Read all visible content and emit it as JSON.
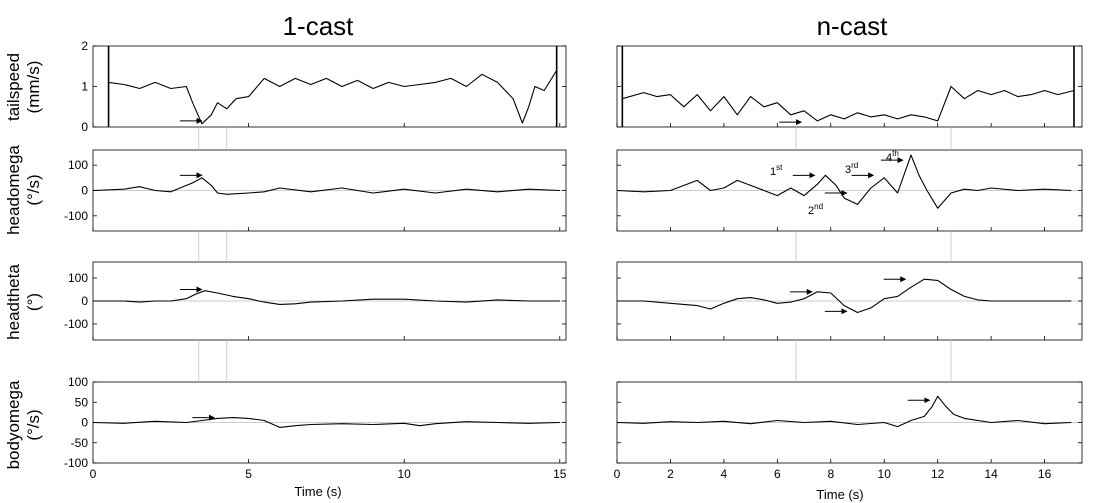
{
  "figure": {
    "left_title": "1-cast",
    "right_title": "n-cast",
    "row_labels": [
      {
        "name": "tailspeed",
        "unit": "(mm/s)"
      },
      {
        "name": "headomega",
        "unit": "(°/s)"
      },
      {
        "name": "headtheta",
        "unit": "(°)"
      },
      {
        "name": "bodyomega",
        "unit": "(°/s)"
      }
    ],
    "xlabel": "Time (s)",
    "left_xticks": [
      "0",
      "5",
      "10",
      "15"
    ],
    "right_xticks": [
      "0",
      "2",
      "4",
      "6",
      "8",
      "10",
      "12",
      "14",
      "16"
    ],
    "yticks": {
      "tailspeed": [
        "2",
        "1",
        "0"
      ],
      "headomega": [
        "100",
        "0",
        "-100"
      ],
      "headtheta": [
        "100",
        "0",
        "-100"
      ],
      "bodyomega": [
        "100",
        "50",
        "0",
        "-50",
        "-100"
      ]
    },
    "cast_labels": [
      {
        "base": "1",
        "sup": "st"
      },
      {
        "base": "2",
        "sup": "nd"
      },
      {
        "base": "3",
        "sup": "rd"
      },
      {
        "base": "4",
        "sup": "th"
      }
    ]
  },
  "chart_data": [
    {
      "type": "line",
      "panel": "1-cast",
      "ylabel": "tailspeed (mm/s)",
      "xlim": [
        0,
        15.2
      ],
      "ylim": [
        0,
        2
      ],
      "markers": [
        0.5,
        14.9
      ],
      "x": [
        0.5,
        1,
        1.5,
        2,
        2.5,
        3,
        3.2,
        3.5,
        3.8,
        4,
        4.3,
        4.6,
        5,
        5.5,
        6,
        6.5,
        7,
        7.5,
        8,
        8.5,
        9,
        9.5,
        10,
        10.5,
        11,
        11.5,
        12,
        12.5,
        13,
        13.5,
        13.8,
        14,
        14.2,
        14.5,
        14.9
      ],
      "y": [
        1.1,
        1.05,
        0.95,
        1.1,
        0.95,
        1.0,
        0.6,
        0.08,
        0.3,
        0.6,
        0.45,
        0.7,
        0.75,
        1.2,
        1.0,
        1.2,
        1.05,
        1.2,
        1.0,
        1.15,
        0.95,
        1.1,
        1.0,
        1.05,
        1.1,
        1.2,
        1.0,
        1.3,
        1.1,
        0.7,
        0.1,
        0.5,
        1.0,
        0.9,
        1.4
      ]
    },
    {
      "type": "line",
      "panel": "1-cast",
      "ylabel": "headomega (°/s)",
      "xlim": [
        0,
        15.2
      ],
      "ylim": [
        -160,
        160
      ],
      "x": [
        0,
        1,
        1.5,
        2,
        2.5,
        3,
        3.2,
        3.5,
        3.8,
        4,
        4.3,
        5,
        5.5,
        6,
        7,
        8,
        9,
        10,
        11,
        12,
        13,
        14,
        15
      ],
      "y": [
        0,
        5,
        15,
        0,
        -5,
        20,
        30,
        50,
        20,
        -10,
        -15,
        -10,
        -5,
        10,
        -5,
        10,
        -10,
        5,
        -10,
        5,
        -5,
        5,
        0
      ]
    },
    {
      "type": "line",
      "panel": "1-cast",
      "ylabel": "headtheta (°)",
      "xlim": [
        0,
        15.2
      ],
      "ylim": [
        -170,
        170
      ],
      "x": [
        0,
        1,
        1.5,
        2,
        2.5,
        3,
        3.3,
        3.6,
        4,
        4.5,
        5,
        5.5,
        6,
        6.5,
        7,
        8,
        9,
        10,
        11,
        12,
        13,
        14,
        15
      ],
      "y": [
        0,
        0,
        -5,
        0,
        0,
        10,
        30,
        45,
        35,
        20,
        10,
        -5,
        -15,
        -12,
        -5,
        0,
        8,
        8,
        0,
        -5,
        5,
        0,
        0
      ]
    },
    {
      "type": "line",
      "panel": "1-cast",
      "ylabel": "bodyomega (°/s)",
      "xlim": [
        0,
        15.2
      ],
      "ylim": [
        -100,
        100
      ],
      "x": [
        0,
        1,
        2,
        3,
        3.5,
        4,
        4.5,
        5,
        5.5,
        6,
        6.5,
        7,
        8,
        9,
        10,
        10.5,
        11,
        12,
        13,
        14,
        15
      ],
      "y": [
        0,
        -2,
        3,
        0,
        5,
        10,
        12,
        10,
        5,
        -12,
        -8,
        -5,
        -3,
        -5,
        -2,
        -8,
        -3,
        2,
        0,
        -2,
        0
      ]
    },
    {
      "type": "line",
      "panel": "n-cast",
      "ylabel": "tailspeed (mm/s)",
      "xlim": [
        0,
        17.4
      ],
      "ylim": [
        0,
        2
      ],
      "markers": [
        0.2,
        17.1
      ],
      "x": [
        0.2,
        1,
        1.5,
        2,
        2.5,
        3,
        3.5,
        4,
        4.5,
        5,
        5.5,
        6,
        6.5,
        7,
        7.5,
        8,
        8.5,
        9,
        9.5,
        10,
        10.5,
        11,
        11.5,
        12,
        12.5,
        13,
        13.5,
        14,
        14.5,
        15,
        15.5,
        16,
        16.5,
        17.1
      ],
      "y": [
        0.7,
        0.85,
        0.75,
        0.8,
        0.5,
        0.8,
        0.4,
        0.75,
        0.3,
        0.75,
        0.5,
        0.6,
        0.3,
        0.4,
        0.15,
        0.3,
        0.2,
        0.35,
        0.25,
        0.3,
        0.2,
        0.3,
        0.25,
        0.15,
        1.0,
        0.7,
        0.9,
        0.8,
        0.9,
        0.75,
        0.8,
        0.9,
        0.8,
        0.9
      ]
    },
    {
      "type": "line",
      "panel": "n-cast",
      "ylabel": "headomega (°/s)",
      "xlim": [
        0,
        17.4
      ],
      "ylim": [
        -160,
        160
      ],
      "x": [
        0,
        1,
        2,
        3,
        3.5,
        4,
        4.5,
        5,
        5.5,
        6,
        6.5,
        7,
        7.5,
        7.8,
        8.2,
        8.5,
        9,
        9.5,
        10,
        10.5,
        11,
        11.3,
        11.6,
        12,
        12.5,
        13,
        13.5,
        14,
        15,
        16,
        17
      ],
      "y": [
        0,
        -5,
        0,
        40,
        0,
        10,
        40,
        20,
        0,
        -20,
        10,
        -20,
        25,
        60,
        20,
        -30,
        -55,
        10,
        50,
        -10,
        140,
        60,
        0,
        -70,
        -10,
        5,
        0,
        10,
        0,
        5,
        0
      ]
    },
    {
      "type": "line",
      "panel": "n-cast",
      "ylabel": "headtheta (°)",
      "xlim": [
        0,
        17.4
      ],
      "ylim": [
        -170,
        170
      ],
      "x": [
        0,
        1,
        2,
        3,
        3.5,
        4,
        4.5,
        5,
        5.5,
        6,
        6.5,
        7,
        7.5,
        8,
        8.5,
        9,
        9.5,
        10,
        10.5,
        11,
        11.5,
        12,
        12.5,
        13,
        13.5,
        14,
        15,
        16,
        17
      ],
      "y": [
        0,
        0,
        -10,
        -20,
        -35,
        -10,
        10,
        15,
        5,
        -10,
        -5,
        10,
        40,
        35,
        -20,
        -50,
        -30,
        10,
        20,
        60,
        95,
        90,
        50,
        20,
        5,
        0,
        0,
        0,
        0
      ]
    },
    {
      "type": "line",
      "panel": "n-cast",
      "ylabel": "bodyomega (°/s)",
      "xlim": [
        0,
        17.4
      ],
      "ylim": [
        -100,
        100
      ],
      "x": [
        0,
        1,
        2,
        3,
        4,
        5,
        6,
        7,
        8,
        9,
        10,
        10.5,
        11,
        11.5,
        11.8,
        12,
        12.3,
        12.6,
        13,
        14,
        15,
        16,
        17
      ],
      "y": [
        0,
        -2,
        2,
        0,
        3,
        -3,
        5,
        0,
        3,
        -5,
        0,
        -10,
        5,
        15,
        40,
        65,
        40,
        20,
        10,
        0,
        5,
        -3,
        0
      ]
    }
  ]
}
